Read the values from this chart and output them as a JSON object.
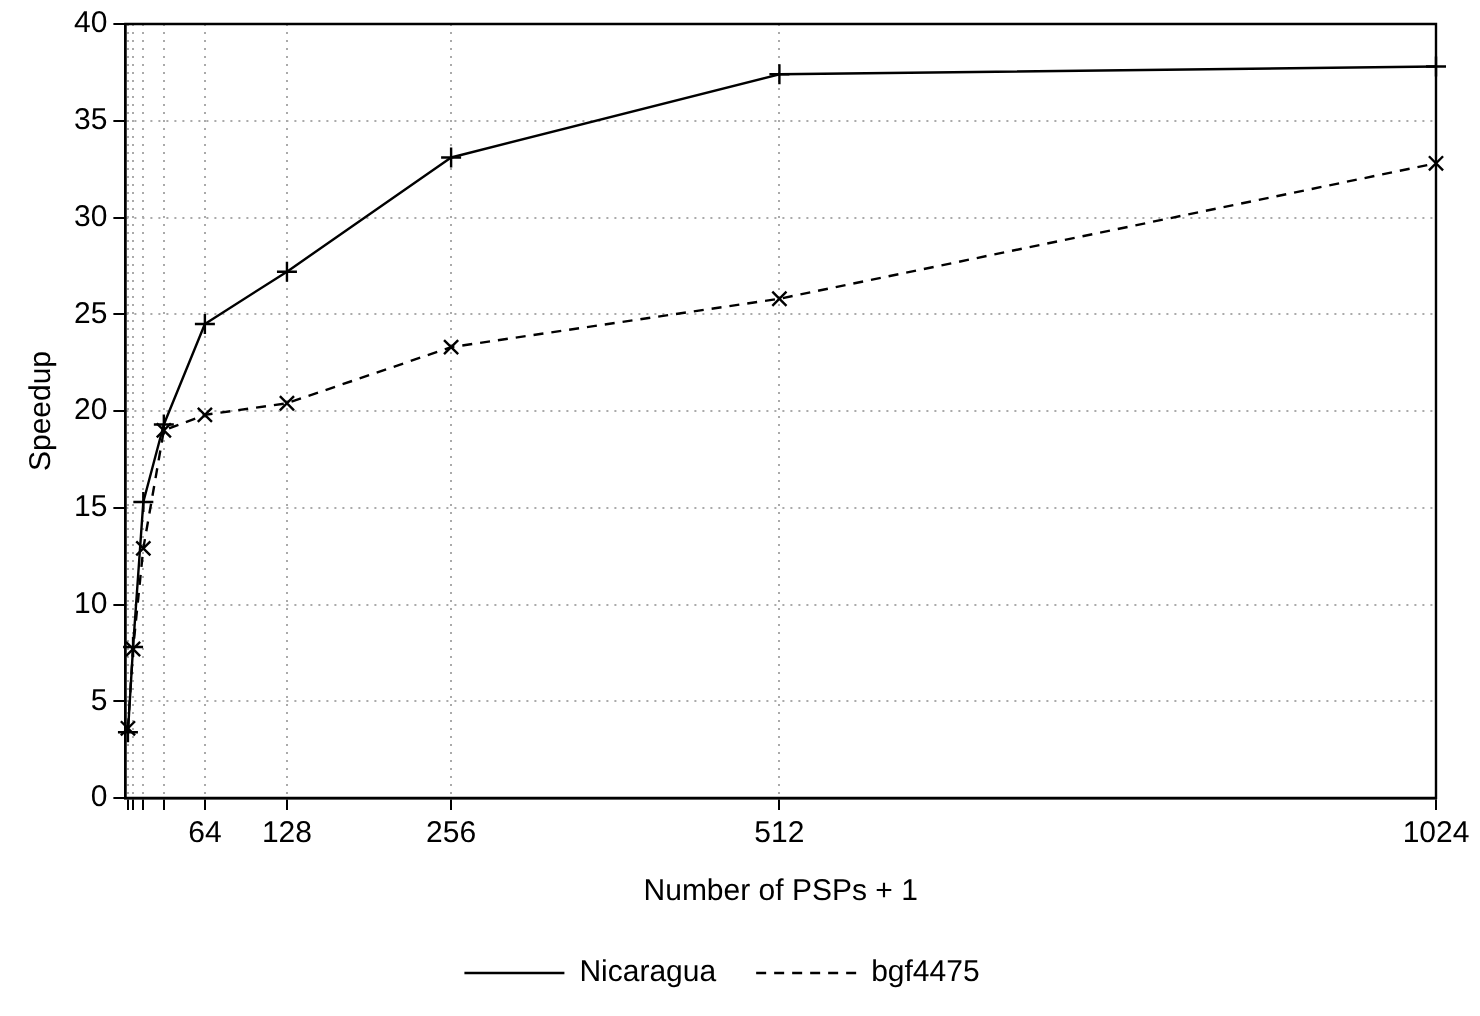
{
  "chart_data": {
    "type": "line",
    "xlabel": "Number of PSPs + 1",
    "ylabel": "Speedup",
    "x": [
      4,
      8,
      16,
      32,
      64,
      128,
      256,
      512,
      1024
    ],
    "series": [
      {
        "name": "Nicaragua",
        "color": "#000000",
        "marker": "cross",
        "line_style": "solid",
        "values": [
          3.4,
          7.8,
          15.3,
          19.3,
          24.5,
          27.2,
          33.1,
          37.4,
          37.8
        ]
      },
      {
        "name": "bgf4475",
        "color": "#000000",
        "marker": "crossRot",
        "line_style": "dashed",
        "values": [
          3.6,
          7.7,
          12.9,
          19.0,
          19.8,
          20.4,
          23.3,
          25.8,
          32.8
        ]
      }
    ],
    "xlim": [
      2,
      1024
    ],
    "xticks": [
      {
        "value": 4,
        "label": null
      },
      {
        "value": 8,
        "label": null
      },
      {
        "value": 16,
        "label": null
      },
      {
        "value": 32,
        "label": null
      },
      64,
      128,
      256,
      512,
      1024
    ],
    "ylim": [
      0,
      40
    ],
    "yticks": [
      0,
      5,
      10,
      15,
      20,
      25,
      30,
      35,
      40
    ],
    "grid": true,
    "legend": "bottom"
  }
}
